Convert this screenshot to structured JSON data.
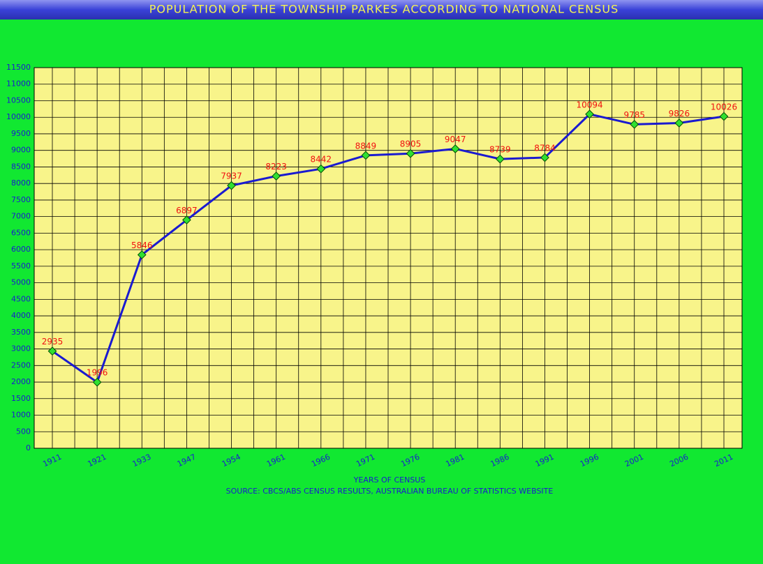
{
  "chart_data": {
    "type": "line",
    "title": "POPULATION OF THE TOWNSHIP PARKES ACCORDING TO NATIONAL CENSUS",
    "x_label": "YEARS OF CENSUS",
    "source": "SOURCE: CBCS/ABS CENSUS RESULTS, AUSTRALIAN BUREAU OF STATISTICS WEBSITE",
    "categories": [
      "1911",
      "1921",
      "1933",
      "1947",
      "1954",
      "1961",
      "1966",
      "1971",
      "1976",
      "1981",
      "1986",
      "1991",
      "1996",
      "2001",
      "2006",
      "2011"
    ],
    "series": [
      {
        "name": "Population",
        "color": "#1a1ad0",
        "values": [
          2935,
          1996,
          5846,
          6897,
          7937,
          8223,
          8442,
          8849,
          8905,
          9047,
          8739,
          8784,
          10094,
          9785,
          9826,
          10026
        ]
      }
    ],
    "ylim": [
      0,
      11500
    ],
    "yticks": [
      0,
      500,
      1000,
      1500,
      2000,
      2500,
      3000,
      3500,
      4000,
      4500,
      5000,
      5500,
      6000,
      6500,
      7000,
      7500,
      8000,
      8500,
      9000,
      9500,
      10000,
      10500,
      11000,
      11500
    ],
    "grid": true
  }
}
